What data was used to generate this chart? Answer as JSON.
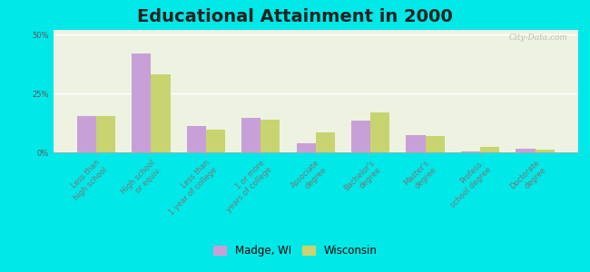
{
  "title": "Educational Attainment in 2000",
  "categories": [
    "Less than\nhigh school",
    "High school\nor equiv.",
    "Less than\n1 year of college",
    "1 or more\nyears of college",
    "Associate\ndegree",
    "Bachelor's\ndegree",
    "Master's\ndegree",
    "Profess.\nschool degree",
    "Doctorate\ndegree"
  ],
  "madge_values": [
    15.5,
    42.0,
    11.0,
    14.5,
    4.0,
    13.5,
    7.5,
    0.3,
    1.5
  ],
  "wisconsin_values": [
    15.5,
    33.0,
    9.5,
    14.0,
    8.5,
    17.0,
    7.0,
    2.5,
    1.0
  ],
  "madge_color": "#c8a0d8",
  "wisconsin_color": "#c8d470",
  "background_outer": "#00e8e8",
  "plot_bg": "#eef2e0",
  "ylabel_ticks": [
    "0%",
    "25%",
    "50%"
  ],
  "ytick_values": [
    0,
    25,
    50
  ],
  "ylim": [
    0,
    52
  ],
  "bar_width": 0.35,
  "title_fontsize": 14,
  "tick_fontsize": 6.0,
  "legend_fontsize": 8.5,
  "watermark": "City-Data.com"
}
